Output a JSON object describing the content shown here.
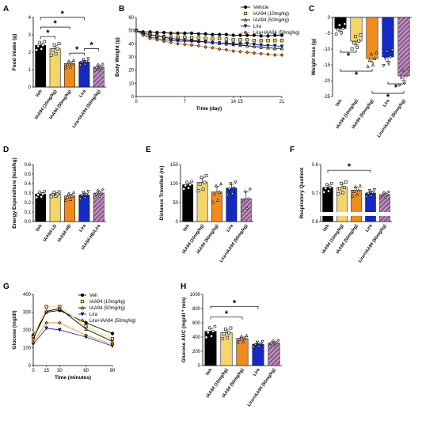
{
  "colors": {
    "veh": "#000000",
    "lo": "#f3d56b",
    "hi": "#f08c1e",
    "lira": "#1428c8",
    "combo_a": "#e0909a",
    "combo_b": "#6a5fb3"
  },
  "chart_data": [
    {
      "id": "A",
      "type": "bar",
      "panel": "A",
      "ylabel": "Food intake (g)",
      "ylim": [
        0,
        4
      ],
      "yticks": [
        0,
        1,
        2,
        3,
        4
      ],
      "categories": [
        "Veh",
        "IAA94 (10mg/kg)",
        "IAA94 (50mg/kg)",
        "Lira",
        "Lira+IAA94 (50mg/kg)"
      ],
      "values": [
        2.4,
        2.2,
        1.35,
        1.45,
        1.15
      ],
      "errors": [
        0.12,
        0.18,
        0.1,
        0.08,
        0.08
      ],
      "significance": [
        "*",
        "*",
        "*",
        "*",
        "*"
      ]
    },
    {
      "id": "B",
      "type": "line",
      "panel": "B",
      "xlabel": "Time (day)",
      "ylabel": "Body Weight (g)",
      "ylim": [
        0,
        60
      ],
      "yticks": [
        0,
        10,
        20,
        30,
        40,
        50,
        60
      ],
      "xlim": [
        0,
        21
      ],
      "xticks": [
        0,
        7,
        14,
        15,
        21
      ],
      "x": [
        0,
        1,
        2,
        3,
        4,
        5,
        6,
        7,
        8,
        9,
        10,
        11,
        12,
        13,
        14,
        15,
        16,
        17,
        18,
        19,
        20,
        21
      ],
      "legend": [
        "Vehicle",
        "IAA94 (10mg/kg)",
        "IAA94 (50mg/kg)",
        "Lira",
        "Lira+IAA94 (50mg/kg)"
      ],
      "series": [
        {
          "name": "Vehicle",
          "values": [
            50,
            49,
            49,
            48.5,
            48.5,
            48,
            48,
            48,
            48,
            47.5,
            47.5,
            47,
            47,
            47,
            46.5,
            46.5,
            46.5,
            46.5,
            46,
            46,
            46.5,
            46.5
          ]
        },
        {
          "name": "IAA94 (10mg/kg)",
          "values": [
            50,
            48,
            47,
            46,
            45.5,
            45,
            45,
            45,
            44.5,
            44.5,
            44,
            44,
            44,
            43.5,
            43,
            43,
            43,
            42.5,
            42.5,
            42.5,
            42.5,
            42.5
          ]
        },
        {
          "name": "IAA94 (50mg/kg)",
          "values": [
            50,
            48,
            47,
            46,
            45,
            44,
            43.5,
            43,
            42.5,
            42,
            41.5,
            41,
            40.5,
            40,
            39.5,
            39,
            38.5,
            38,
            37.5,
            37,
            36.5,
            36.5
          ]
        },
        {
          "name": "Lira",
          "values": [
            50,
            47,
            45,
            44,
            43,
            42.5,
            42,
            42,
            42,
            41.5,
            41.5,
            41,
            40.5,
            40.5,
            40,
            40,
            40,
            39.5,
            39,
            38.5,
            38.5,
            38
          ]
        },
        {
          "name": "Lira+IAA94 (50mg/kg)",
          "values": [
            50,
            46.5,
            44,
            43,
            42,
            41,
            40,
            39.5,
            39,
            38.5,
            37.5,
            37,
            36,
            35.5,
            34.5,
            34,
            33.5,
            33,
            32.5,
            32,
            31.5,
            31.5
          ]
        }
      ]
    },
    {
      "id": "C",
      "type": "bar",
      "panel": "C",
      "ylabel": "Weight loss (g)",
      "ylim": [
        -25,
        0
      ],
      "yticks": [
        0,
        -5,
        -10,
        -15,
        -20,
        -25
      ],
      "categories": [
        "Veh",
        "IAA94 (10mg/kg)",
        "IAA94 (50mg/kg)",
        "Lira",
        "Lira+IAA94 (50mg/kg)"
      ],
      "values": [
        -3.5,
        -7.5,
        -13,
        -12.5,
        -18.5
      ],
      "errors": [
        0.8,
        1.2,
        1.2,
        1.4,
        1.5
      ],
      "significance": [
        "*",
        "*",
        "*",
        "*"
      ]
    },
    {
      "id": "D",
      "type": "bar",
      "panel": "D",
      "ylabel": "Energy Expenditure (kcal/kg)",
      "ylim": [
        0,
        0.6
      ],
      "yticks": [
        0.0,
        0.1,
        0.2,
        0.3,
        0.4,
        0.5,
        0.6
      ],
      "categories": [
        "Veh",
        "IAA94-LD",
        "IAA94-HD",
        "Lira",
        "IAA94-HD/Lira"
      ],
      "values": [
        0.29,
        0.29,
        0.27,
        0.28,
        0.3
      ],
      "errors": [
        0.015,
        0.01,
        0.02,
        0.02,
        0.02
      ]
    },
    {
      "id": "E",
      "type": "bar",
      "panel": "E",
      "ylabel": "Distance Travelled (m)",
      "ylim": [
        0,
        150
      ],
      "yticks": [
        0,
        50,
        100,
        150
      ],
      "categories": [
        "Veh",
        "IAA94 (10mg/kg)",
        "IAA94 (50mg/kg)",
        "Lira",
        "Lira+IAA94 (50mg/kg)"
      ],
      "values": [
        97,
        103,
        78,
        88,
        60
      ],
      "errors": [
        5,
        12,
        15,
        10,
        18
      ]
    },
    {
      "id": "F",
      "type": "bar",
      "panel": "F",
      "ylabel": "Respiratory Quotient",
      "ylim": [
        0.6,
        0.8
      ],
      "yticks": [
        0.6,
        0.7,
        0.8
      ],
      "categories": [
        "Veh",
        "IAA94 (10mg/kg)",
        "IAA94 (50mg/kg)",
        "Lira",
        "Lira+IAA94 (50mg/kg)"
      ],
      "values": [
        0.72,
        0.72,
        0.71,
        0.7,
        0.695
      ],
      "errors": [
        0.008,
        0.012,
        0.01,
        0.006,
        0.005
      ],
      "significance": [
        "*"
      ]
    },
    {
      "id": "G",
      "type": "line",
      "panel": "G",
      "xlabel": "Time (minutes)",
      "ylabel": "Glucose (mg/dl)",
      "ylim": [
        0,
        400
      ],
      "yticks": [
        0,
        100,
        200,
        300,
        400
      ],
      "xlim": [
        0,
        90
      ],
      "xticks": [
        0,
        15,
        30,
        60,
        90
      ],
      "x": [
        0,
        15,
        30,
        60,
        90
      ],
      "legend": [
        "Veh",
        "IAA94 (10mg/kg)",
        "IAA94 (50mg/kg)",
        "Lira",
        "Lira+IAA94 (50mg/kg)"
      ],
      "series": [
        {
          "name": "Veh",
          "values": [
            170,
            300,
            310,
            240,
            180
          ]
        },
        {
          "name": "IAA94 (10mg/kg)",
          "values": [
            160,
            330,
            330,
            220,
            150
          ]
        },
        {
          "name": "IAA94 (50mg/kg)",
          "values": [
            150,
            305,
            320,
            205,
            135
          ]
        },
        {
          "name": "Lira",
          "values": [
            120,
            210,
            200,
            160,
            110
          ]
        },
        {
          "name": "Lira+IAA94 (50mg/kg)",
          "values": [
            130,
            240,
            240,
            170,
            120
          ]
        }
      ]
    },
    {
      "id": "H",
      "type": "bar",
      "panel": "H",
      "ylabel": "Glucose AUC (mg/dl * min)",
      "ylim": [
        0,
        1000
      ],
      "yticks": [
        0,
        200,
        400,
        600,
        800,
        1000
      ],
      "categories": [
        "Veh",
        "IAA94 (10mg/kg)",
        "IAA94 (50mg/kg)",
        "Lira",
        "Lira+IAA94 (50mg/kg)"
      ],
      "values": [
        480,
        460,
        380,
        300,
        320
      ],
      "errors": [
        40,
        40,
        20,
        15,
        15
      ],
      "significance": [
        "*",
        "*"
      ]
    }
  ]
}
